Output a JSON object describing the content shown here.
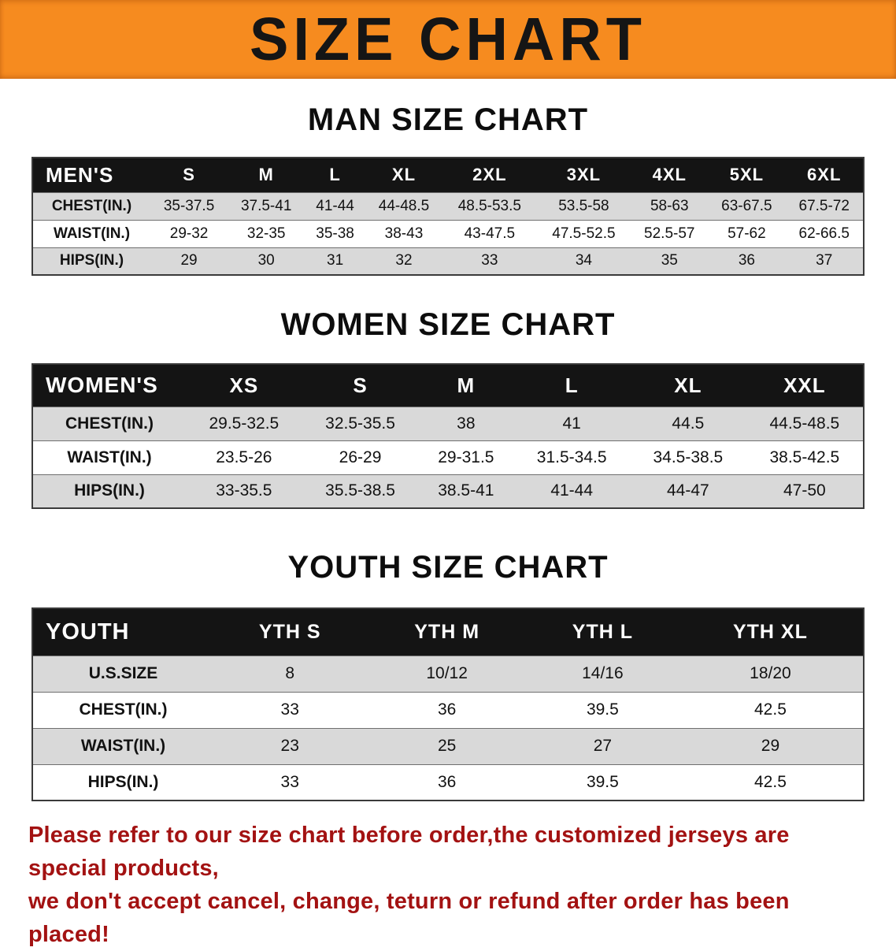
{
  "banner": {
    "title": "SIZE CHART"
  },
  "colors": {
    "banner-bg": "#F68B1F",
    "header-bg": "#141414",
    "stripe": "#D9D9D9",
    "footer-red": "#A31212"
  },
  "men": {
    "heading": "MAN SIZE CHART",
    "header": [
      "MEN'S",
      "S",
      "M",
      "L",
      "XL",
      "2XL",
      "3XL",
      "4XL",
      "5XL",
      "6XL"
    ],
    "rows": [
      [
        "CHEST(IN.)",
        "35-37.5",
        "37.5-41",
        "41-44",
        "44-48.5",
        "48.5-53.5",
        "53.5-58",
        "58-63",
        "63-67.5",
        "67.5-72"
      ],
      [
        "WAIST(IN.)",
        "29-32",
        "32-35",
        "35-38",
        "38-43",
        "43-47.5",
        "47.5-52.5",
        "52.5-57",
        "57-62",
        "62-66.5"
      ],
      [
        "HIPS(IN.)",
        "29",
        "30",
        "31",
        "32",
        "33",
        "34",
        "35",
        "36",
        "37"
      ]
    ]
  },
  "women": {
    "heading": "WOMEN SIZE CHART",
    "header": [
      "WOMEN'S",
      "XS",
      "S",
      "M",
      "L",
      "XL",
      "XXL"
    ],
    "rows": [
      [
        "CHEST(IN.)",
        "29.5-32.5",
        "32.5-35.5",
        "38",
        "41",
        "44.5",
        "44.5-48.5"
      ],
      [
        "WAIST(IN.)",
        "23.5-26",
        "26-29",
        "29-31.5",
        "31.5-34.5",
        "34.5-38.5",
        "38.5-42.5"
      ],
      [
        "HIPS(IN.)",
        "33-35.5",
        "35.5-38.5",
        "38.5-41",
        "41-44",
        "44-47",
        "47-50"
      ]
    ]
  },
  "youth": {
    "heading": "YOUTH SIZE CHART",
    "header": [
      "YOUTH",
      "YTH S",
      "YTH M",
      "YTH L",
      "YTH XL"
    ],
    "rows": [
      [
        "U.S.SIZE",
        "8",
        "10/12",
        "14/16",
        "18/20"
      ],
      [
        "CHEST(IN.)",
        "33",
        "36",
        "39.5",
        "42.5"
      ],
      [
        "WAIST(IN.)",
        "23",
        "25",
        "27",
        "29"
      ],
      [
        "HIPS(IN.)",
        "33",
        "36",
        "39.5",
        "42.5"
      ]
    ]
  },
  "footer": {
    "line1": "Please refer to our size chart before order,the customized jerseys are special products,",
    "line2": "we don't accept cancel, change, teturn or refund after order has been placed!"
  }
}
